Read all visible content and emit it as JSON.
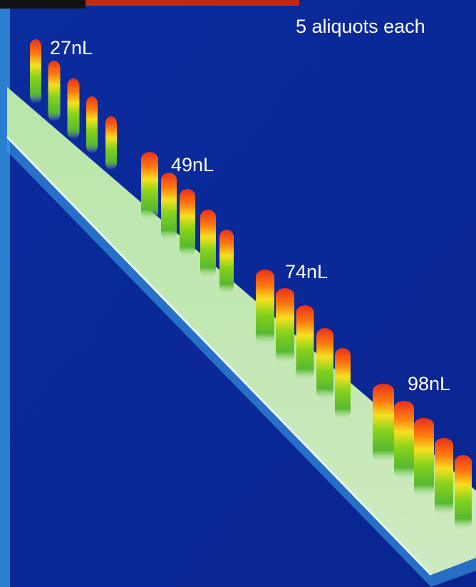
{
  "annotation": "5 aliquots each",
  "groups": [
    {
      "label": "27nL"
    },
    {
      "label": "49nL"
    },
    {
      "label": "74nL"
    },
    {
      "label": "98nL"
    }
  ]
}
